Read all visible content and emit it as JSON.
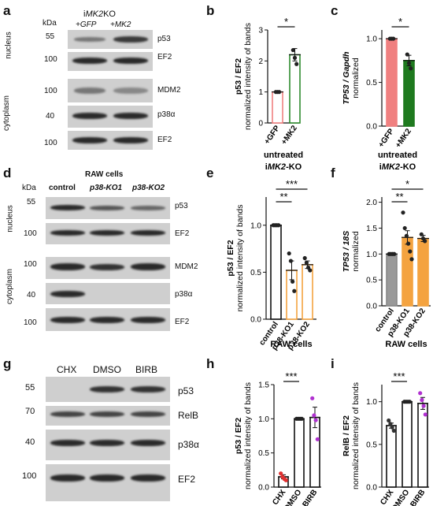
{
  "panel_letters": {
    "a": "a",
    "b": "b",
    "c": "c",
    "d": "d",
    "e": "e",
    "f": "f",
    "g": "g",
    "h": "h",
    "i": "i"
  },
  "a": {
    "kda": "kDa",
    "genotype_prefix": "i",
    "genotype_gene": "MK2",
    "genotype_suffix": "KO",
    "lane_labels": [
      "+GFP",
      "+MK2"
    ],
    "compartments": [
      "nucleus",
      "cytoplasm"
    ],
    "mw_top": [
      "55",
      "100"
    ],
    "mw_bottom": [
      "100",
      "40",
      "100"
    ],
    "bands_top": [
      "p53",
      "EF2"
    ],
    "bands_bottom": [
      "MDM2",
      "p38α",
      "EF2"
    ]
  },
  "d": {
    "title": "RAW cells",
    "kda": "kDa",
    "lanes": [
      "control",
      "p38-KO1",
      "p38-KO2"
    ],
    "compartments": [
      "nucleus",
      "cytoplasm"
    ],
    "mw_top": [
      "55",
      "100"
    ],
    "mw_bottom": [
      "100",
      "40",
      "100"
    ],
    "bands_top": [
      "p53",
      "EF2"
    ],
    "bands_bottom": [
      "MDM2",
      "p38α",
      "EF2"
    ]
  },
  "g": {
    "lanes": [
      "CHX",
      "DMSO",
      "BIRB"
    ],
    "mw": [
      "55",
      "70",
      "40",
      "100"
    ],
    "bands": [
      "p53",
      "RelB",
      "p38α",
      "EF2"
    ]
  },
  "chart_data": [
    {
      "panel": "b",
      "type": "bar",
      "categories": [
        "+GFP",
        "+MK2"
      ],
      "values": [
        1.0,
        2.2
      ],
      "errors": [
        0.0,
        0.2
      ],
      "points": [
        [
          1.0,
          1.0,
          1.0
        ],
        [
          2.35,
          2.1,
          1.9
        ]
      ],
      "colors": [
        "#f08080",
        "#2e8b2e"
      ],
      "ylabel_bold": "p53 / EF2",
      "ylabel": "normalized intensity of bands",
      "yticks": [
        "0",
        "1",
        "2",
        "3"
      ],
      "ylim": [
        0,
        3
      ],
      "significance": [
        "*"
      ],
      "caption_line1": "untreated",
      "caption_line2_prefix": "i",
      "caption_line2_gene": "MK2",
      "caption_line2_suffix": "-KO"
    },
    {
      "panel": "c",
      "type": "bar",
      "categories": [
        "+GFP",
        "+MK2"
      ],
      "values": [
        1.0,
        0.75
      ],
      "errors": [
        0.0,
        0.06
      ],
      "points": [
        [
          1.0,
          1.0,
          1.0
        ],
        [
          0.82,
          0.72,
          0.66
        ]
      ],
      "colors": [
        "#f08080",
        "#1f7a1f"
      ],
      "ylabel_bold": "TP53 / Gapdh",
      "ylabel": "normalized",
      "yticks": [
        "0.0",
        "0.5",
        "1.0"
      ],
      "ylim": [
        0,
        1.1
      ],
      "significance": [
        "*"
      ],
      "caption_line1": "untreated",
      "caption_line2_prefix": "i",
      "caption_line2_gene": "MK2",
      "caption_line2_suffix": "-KO"
    },
    {
      "panel": "e",
      "type": "bar",
      "categories": [
        "control",
        "p38-KO1",
        "p38-KO2"
      ],
      "values": [
        1.0,
        0.52,
        0.58
      ],
      "errors": [
        0.0,
        0.1,
        0.04
      ],
      "points": [
        [
          1.0,
          1.0,
          1.0,
          1.0
        ],
        [
          0.7,
          0.62,
          0.4,
          0.3
        ],
        [
          0.65,
          0.6,
          0.55,
          0.52
        ]
      ],
      "colors": [
        "#888888",
        "#f4a340",
        "#f4a340"
      ],
      "ylabel_bold": "p53 / EF2",
      "ylabel": "normalized intensity of bands",
      "yticks": [
        "0.0",
        "0.5",
        "1.0"
      ],
      "ylim": [
        0,
        1.3
      ],
      "significance": [
        "**",
        "***"
      ],
      "caption": "RAW cells"
    },
    {
      "panel": "f",
      "type": "bar",
      "categories": [
        "control",
        "p38-KO1",
        "p38-KO2"
      ],
      "values": [
        1.0,
        1.32,
        1.3
      ],
      "errors": [
        0.0,
        0.13,
        0.06
      ],
      "points": [
        [
          1.0,
          1.0,
          1.0,
          1.0
        ],
        [
          1.8,
          1.5,
          1.35,
          1.2,
          1.05,
          0.9
        ],
        [
          1.38,
          1.3,
          1.25
        ]
      ],
      "colors": [
        "#888888",
        "#f4a340",
        "#f4a340"
      ],
      "ylabel_bold": "TP53 / 18S",
      "ylabel": "normalized",
      "yticks": [
        "0.0",
        "0.5",
        "1.0",
        "1.5",
        "2.0"
      ],
      "ylim": [
        0,
        2.1
      ],
      "significance": [
        "**",
        "*"
      ],
      "caption": "RAW cells"
    },
    {
      "panel": "h",
      "type": "bar",
      "categories": [
        "CHX",
        "DMSO",
        "BIRB"
      ],
      "values": [
        0.15,
        1.0,
        1.02
      ],
      "errors": [
        0.03,
        0.0,
        0.15
      ],
      "points": [
        [
          0.2,
          0.15,
          0.12,
          0.1
        ],
        [
          1.0,
          1.0,
          1.0,
          1.0
        ],
        [
          1.3,
          1.05,
          0.98,
          0.7
        ]
      ],
      "colors": [
        "#e03030",
        "#222222",
        "#b030d0"
      ],
      "ylabel_bold": "p53 / EF2",
      "ylabel": "normalized intensity of bands",
      "yticks": [
        "0.0",
        "0.5",
        "1.0",
        "1.5"
      ],
      "ylim": [
        0,
        1.5
      ],
      "significance": [
        "***"
      ]
    },
    {
      "panel": "i",
      "type": "bar",
      "categories": [
        "CHX",
        "DMSO",
        "BIRB"
      ],
      "values": [
        0.72,
        1.0,
        0.98
      ],
      "errors": [
        0.03,
        0.0,
        0.07
      ],
      "points": [
        [
          0.78,
          0.74,
          0.7,
          0.66
        ],
        [
          1.0,
          1.0,
          1.0,
          1.0
        ],
        [
          1.1,
          1.02,
          0.95,
          0.85
        ]
      ],
      "colors": [
        "#333333",
        "#222222",
        "#b030d0"
      ],
      "ylabel_bold": "RelB / EF2",
      "ylabel": "normalized intensity of bands",
      "yticks": [
        "0.0",
        "0.5",
        "1.0"
      ],
      "ylim": [
        0,
        1.2
      ],
      "significance": [
        "***"
      ]
    }
  ]
}
